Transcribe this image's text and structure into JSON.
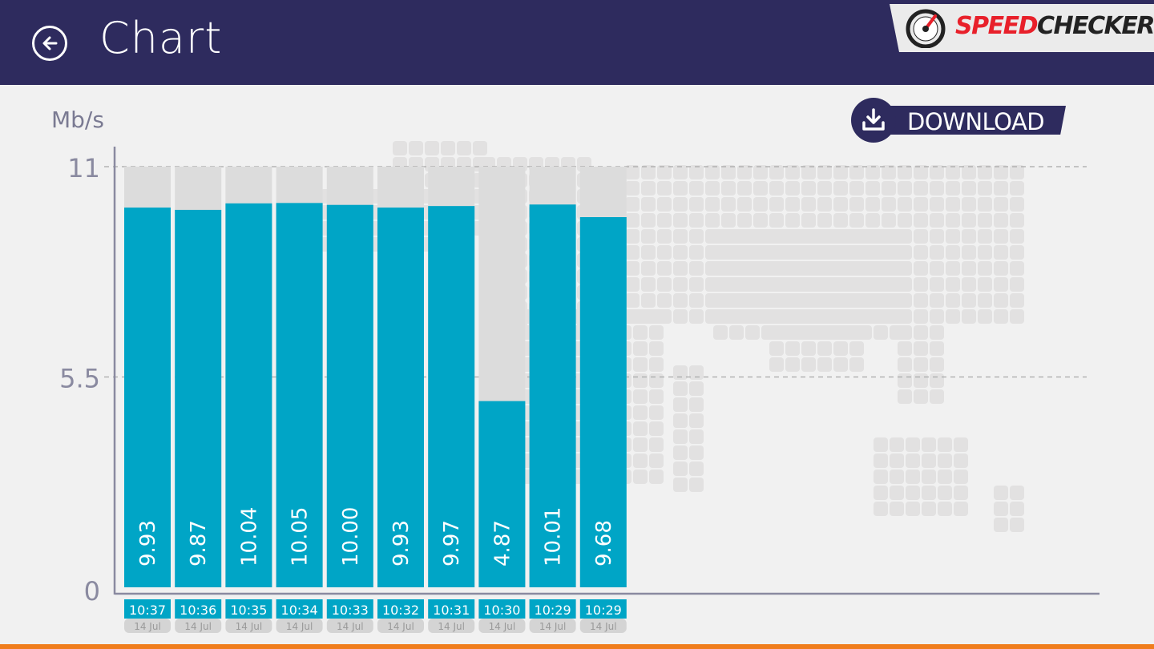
{
  "header": {
    "title": "Chart",
    "logo_speed": "SPEED",
    "logo_checker": "CHECKER"
  },
  "download": {
    "label": "DOWNLOAD"
  },
  "colors": {
    "header_bg": "#2e2b5e",
    "bar": "#00a5c6",
    "bar_background": "#dcdcdc",
    "axis": "#8a8aa0",
    "accent_bottom": "#f07d1c",
    "logo_red": "#e8202a"
  },
  "chart_data": {
    "type": "bar",
    "ylabel": "Mb/s",
    "ylim": [
      0,
      11
    ],
    "yticks": [
      "0",
      "5.5",
      "11"
    ],
    "grid": "dashed horizontal at 5.5 and 11",
    "categories": [
      {
        "time": "10:37",
        "date": "14 Jul"
      },
      {
        "time": "10:36",
        "date": "14 Jul"
      },
      {
        "time": "10:35",
        "date": "14 Jul"
      },
      {
        "time": "10:34",
        "date": "14 Jul"
      },
      {
        "time": "10:33",
        "date": "14 Jul"
      },
      {
        "time": "10:32",
        "date": "14 Jul"
      },
      {
        "time": "10:31",
        "date": "14 Jul"
      },
      {
        "time": "10:30",
        "date": "14 Jul"
      },
      {
        "time": "10:29",
        "date": "14 Jul"
      },
      {
        "time": "10:29",
        "date": "14 Jul"
      }
    ],
    "values": [
      9.93,
      9.87,
      10.04,
      10.05,
      10.0,
      9.93,
      9.97,
      4.87,
      10.01,
      9.68
    ],
    "value_labels": [
      "9.93",
      "9.87",
      "10.04",
      "10.05",
      "10.00",
      "9.93",
      "9.97",
      "4.87",
      "10.01",
      "9.68"
    ]
  }
}
